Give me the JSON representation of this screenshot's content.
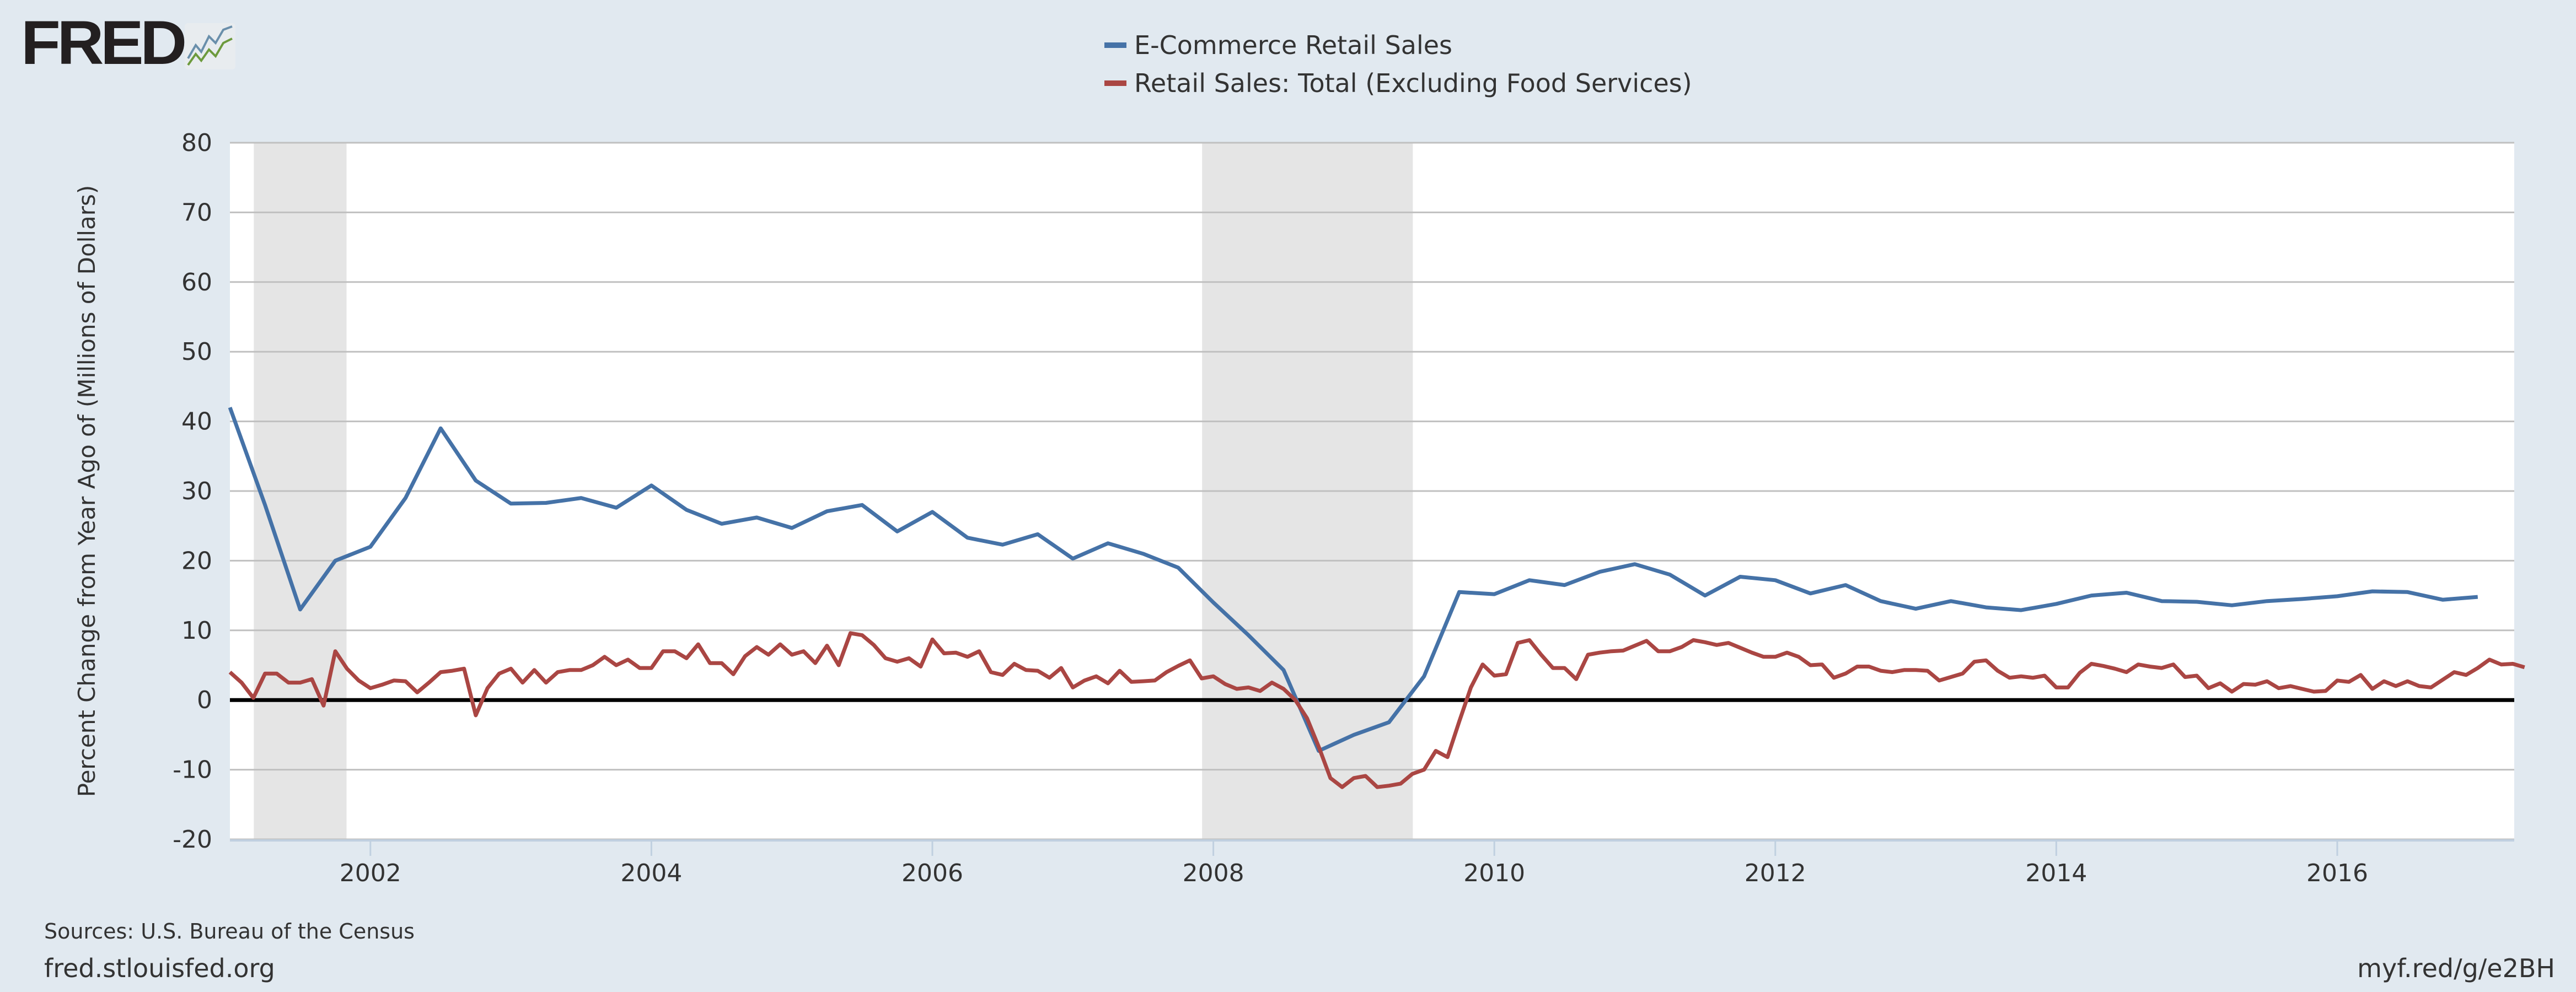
{
  "logo": {
    "text": "FRED"
  },
  "footer": {
    "sources": "Sources: U.S. Bureau of the Census",
    "site": "fred.stlouisfed.org",
    "short_url": "myf.red/g/e2BH"
  },
  "chart_data": {
    "type": "line",
    "title": "",
    "ylabel": "Percent Change from Year Ago of (Millions of Dollars)",
    "xlabel": "",
    "ylim": [
      -20,
      80
    ],
    "xlim": [
      2001.0,
      2017.3
    ],
    "yticks": [
      80,
      70,
      60,
      50,
      40,
      30,
      20,
      10,
      0,
      -10,
      -20
    ],
    "xticks": [
      2002,
      2004,
      2006,
      2008,
      2010,
      2012,
      2014,
      2016
    ],
    "grid": true,
    "legend_position": "top-center",
    "recessions": [
      [
        2001.17,
        2001.83
      ],
      [
        2007.92,
        2009.42
      ]
    ],
    "series": [
      {
        "name": "E-Commerce Retail Sales",
        "color": "#4572a7",
        "frequency": "quarterly",
        "start": 2001.0,
        "values": [
          42,
          28,
          13,
          20,
          22,
          29,
          39,
          31.5,
          28.2,
          28.3,
          29,
          27.6,
          30.8,
          27.3,
          25.3,
          26.2,
          24.7,
          27.1,
          28,
          24.2,
          27,
          23.3,
          22.3,
          23.8,
          20.3,
          22.5,
          21,
          19,
          14,
          9.3,
          4.3,
          -7.3,
          -5,
          -3.2,
          3.4,
          15.5,
          15.2,
          17.2,
          16.5,
          18.4,
          19.5,
          18,
          15,
          17.7,
          17.2,
          15.3,
          16.5,
          14.2,
          13.1,
          14.2,
          13.3,
          12.9,
          13.8,
          15,
          15.4,
          14.2,
          14.1,
          13.6,
          14.2,
          14.5,
          14.9,
          15.6,
          15.5,
          14.4,
          14.8
        ]
      },
      {
        "name": "Retail Sales: Total (Excluding Food Services)",
        "color": "#aa4643",
        "frequency": "monthly",
        "start": 2001.0,
        "values": [
          4,
          2.5,
          0.3,
          3.8,
          3.8,
          2.5,
          2.5,
          3,
          -0.8,
          7,
          4.5,
          2.8,
          1.7,
          2.2,
          2.8,
          2.7,
          1.1,
          2.5,
          4,
          4.2,
          4.5,
          -2.2,
          1.7,
          3.8,
          4.5,
          2.5,
          4.3,
          2.5,
          4,
          4.3,
          4.3,
          5,
          6.2,
          5,
          5.8,
          4.6,
          4.6,
          7,
          7,
          6,
          8,
          5.3,
          5.3,
          3.7,
          6.3,
          7.6,
          6.5,
          8,
          6.5,
          7,
          5.3,
          7.8,
          5,
          9.6,
          9.3,
          7.9,
          6,
          5.5,
          6,
          4.8,
          8.7,
          6.7,
          6.8,
          6.2,
          7,
          4,
          3.6,
          5.2,
          4.3,
          4.2,
          3.2,
          4.6,
          1.8,
          2.8,
          3.4,
          2.4,
          4.2,
          2.6,
          2.7,
          2.8,
          4,
          4.9,
          5.7,
          3.1,
          3.4,
          2.3,
          1.6,
          1.8,
          1.3,
          2.5,
          1.6,
          0,
          -2.6,
          -6.7,
          -11.2,
          -12.5,
          -11.2,
          -10.9,
          -12.5,
          -12.3,
          -12,
          -10.6,
          -10,
          -7.3,
          -8.2,
          -3.1,
          1.8,
          5.1,
          3.5,
          3.7,
          8.2,
          8.6,
          6.5,
          4.6,
          4.6,
          3,
          6.5,
          6.8,
          7,
          7.1,
          7.8,
          8.5,
          7,
          7,
          7.6,
          8.6,
          8.3,
          7.9,
          8.2,
          7.5,
          6.8,
          6.2,
          6.2,
          6.8,
          6.2,
          5,
          5.1,
          3.2,
          3.8,
          4.8,
          4.8,
          4.2,
          4,
          4.3,
          4.3,
          4.2,
          2.8,
          3.3,
          3.8,
          5.5,
          5.7,
          4.2,
          3.2,
          3.4,
          3.2,
          3.5,
          1.8,
          1.8,
          3.9,
          5.2,
          4.9,
          4.5,
          4,
          5.1,
          4.8,
          4.6,
          5.1,
          3.3,
          3.5,
          1.7,
          2.4,
          1.2,
          2.3,
          2.2,
          2.7,
          1.7,
          2,
          1.6,
          1.2,
          1.3,
          2.8,
          2.6,
          3.6,
          1.6,
          2.7,
          2,
          2.7,
          2,
          1.8,
          2.9,
          4,
          3.6,
          4.6,
          5.8,
          5.1,
          5.2,
          4.7
        ]
      }
    ]
  }
}
